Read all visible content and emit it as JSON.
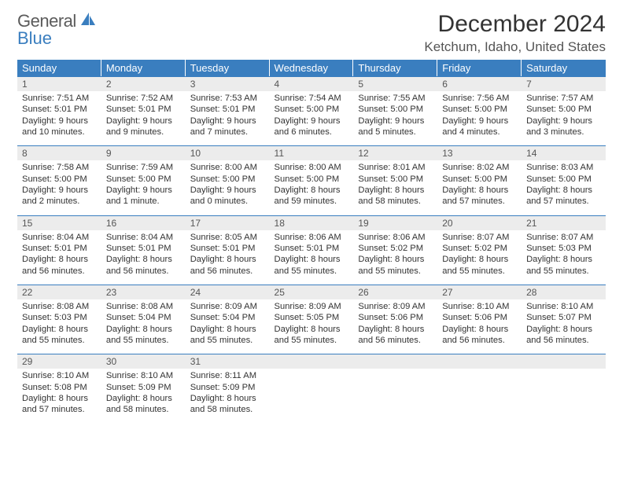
{
  "logo": {
    "part1": "General",
    "part2": "Blue"
  },
  "title": "December 2024",
  "location": "Ketchum, Idaho, United States",
  "colors": {
    "header_bg": "#3a7ebf",
    "header_text": "#ffffff",
    "daynum_bg": "#ececec",
    "text": "#333333",
    "rule": "#3a7ebf"
  },
  "weekdays": [
    "Sunday",
    "Monday",
    "Tuesday",
    "Wednesday",
    "Thursday",
    "Friday",
    "Saturday"
  ],
  "days": [
    {
      "n": "1",
      "sunrise": "Sunrise: 7:51 AM",
      "sunset": "Sunset: 5:01 PM",
      "daylight": "Daylight: 9 hours and 10 minutes."
    },
    {
      "n": "2",
      "sunrise": "Sunrise: 7:52 AM",
      "sunset": "Sunset: 5:01 PM",
      "daylight": "Daylight: 9 hours and 9 minutes."
    },
    {
      "n": "3",
      "sunrise": "Sunrise: 7:53 AM",
      "sunset": "Sunset: 5:01 PM",
      "daylight": "Daylight: 9 hours and 7 minutes."
    },
    {
      "n": "4",
      "sunrise": "Sunrise: 7:54 AM",
      "sunset": "Sunset: 5:00 PM",
      "daylight": "Daylight: 9 hours and 6 minutes."
    },
    {
      "n": "5",
      "sunrise": "Sunrise: 7:55 AM",
      "sunset": "Sunset: 5:00 PM",
      "daylight": "Daylight: 9 hours and 5 minutes."
    },
    {
      "n": "6",
      "sunrise": "Sunrise: 7:56 AM",
      "sunset": "Sunset: 5:00 PM",
      "daylight": "Daylight: 9 hours and 4 minutes."
    },
    {
      "n": "7",
      "sunrise": "Sunrise: 7:57 AM",
      "sunset": "Sunset: 5:00 PM",
      "daylight": "Daylight: 9 hours and 3 minutes."
    },
    {
      "n": "8",
      "sunrise": "Sunrise: 7:58 AM",
      "sunset": "Sunset: 5:00 PM",
      "daylight": "Daylight: 9 hours and 2 minutes."
    },
    {
      "n": "9",
      "sunrise": "Sunrise: 7:59 AM",
      "sunset": "Sunset: 5:00 PM",
      "daylight": "Daylight: 9 hours and 1 minute."
    },
    {
      "n": "10",
      "sunrise": "Sunrise: 8:00 AM",
      "sunset": "Sunset: 5:00 PM",
      "daylight": "Daylight: 9 hours and 0 minutes."
    },
    {
      "n": "11",
      "sunrise": "Sunrise: 8:00 AM",
      "sunset": "Sunset: 5:00 PM",
      "daylight": "Daylight: 8 hours and 59 minutes."
    },
    {
      "n": "12",
      "sunrise": "Sunrise: 8:01 AM",
      "sunset": "Sunset: 5:00 PM",
      "daylight": "Daylight: 8 hours and 58 minutes."
    },
    {
      "n": "13",
      "sunrise": "Sunrise: 8:02 AM",
      "sunset": "Sunset: 5:00 PM",
      "daylight": "Daylight: 8 hours and 57 minutes."
    },
    {
      "n": "14",
      "sunrise": "Sunrise: 8:03 AM",
      "sunset": "Sunset: 5:00 PM",
      "daylight": "Daylight: 8 hours and 57 minutes."
    },
    {
      "n": "15",
      "sunrise": "Sunrise: 8:04 AM",
      "sunset": "Sunset: 5:01 PM",
      "daylight": "Daylight: 8 hours and 56 minutes."
    },
    {
      "n": "16",
      "sunrise": "Sunrise: 8:04 AM",
      "sunset": "Sunset: 5:01 PM",
      "daylight": "Daylight: 8 hours and 56 minutes."
    },
    {
      "n": "17",
      "sunrise": "Sunrise: 8:05 AM",
      "sunset": "Sunset: 5:01 PM",
      "daylight": "Daylight: 8 hours and 56 minutes."
    },
    {
      "n": "18",
      "sunrise": "Sunrise: 8:06 AM",
      "sunset": "Sunset: 5:01 PM",
      "daylight": "Daylight: 8 hours and 55 minutes."
    },
    {
      "n": "19",
      "sunrise": "Sunrise: 8:06 AM",
      "sunset": "Sunset: 5:02 PM",
      "daylight": "Daylight: 8 hours and 55 minutes."
    },
    {
      "n": "20",
      "sunrise": "Sunrise: 8:07 AM",
      "sunset": "Sunset: 5:02 PM",
      "daylight": "Daylight: 8 hours and 55 minutes."
    },
    {
      "n": "21",
      "sunrise": "Sunrise: 8:07 AM",
      "sunset": "Sunset: 5:03 PM",
      "daylight": "Daylight: 8 hours and 55 minutes."
    },
    {
      "n": "22",
      "sunrise": "Sunrise: 8:08 AM",
      "sunset": "Sunset: 5:03 PM",
      "daylight": "Daylight: 8 hours and 55 minutes."
    },
    {
      "n": "23",
      "sunrise": "Sunrise: 8:08 AM",
      "sunset": "Sunset: 5:04 PM",
      "daylight": "Daylight: 8 hours and 55 minutes."
    },
    {
      "n": "24",
      "sunrise": "Sunrise: 8:09 AM",
      "sunset": "Sunset: 5:04 PM",
      "daylight": "Daylight: 8 hours and 55 minutes."
    },
    {
      "n": "25",
      "sunrise": "Sunrise: 8:09 AM",
      "sunset": "Sunset: 5:05 PM",
      "daylight": "Daylight: 8 hours and 55 minutes."
    },
    {
      "n": "26",
      "sunrise": "Sunrise: 8:09 AM",
      "sunset": "Sunset: 5:06 PM",
      "daylight": "Daylight: 8 hours and 56 minutes."
    },
    {
      "n": "27",
      "sunrise": "Sunrise: 8:10 AM",
      "sunset": "Sunset: 5:06 PM",
      "daylight": "Daylight: 8 hours and 56 minutes."
    },
    {
      "n": "28",
      "sunrise": "Sunrise: 8:10 AM",
      "sunset": "Sunset: 5:07 PM",
      "daylight": "Daylight: 8 hours and 56 minutes."
    },
    {
      "n": "29",
      "sunrise": "Sunrise: 8:10 AM",
      "sunset": "Sunset: 5:08 PM",
      "daylight": "Daylight: 8 hours and 57 minutes."
    },
    {
      "n": "30",
      "sunrise": "Sunrise: 8:10 AM",
      "sunset": "Sunset: 5:09 PM",
      "daylight": "Daylight: 8 hours and 58 minutes."
    },
    {
      "n": "31",
      "sunrise": "Sunrise: 8:11 AM",
      "sunset": "Sunset: 5:09 PM",
      "daylight": "Daylight: 8 hours and 58 minutes."
    }
  ]
}
